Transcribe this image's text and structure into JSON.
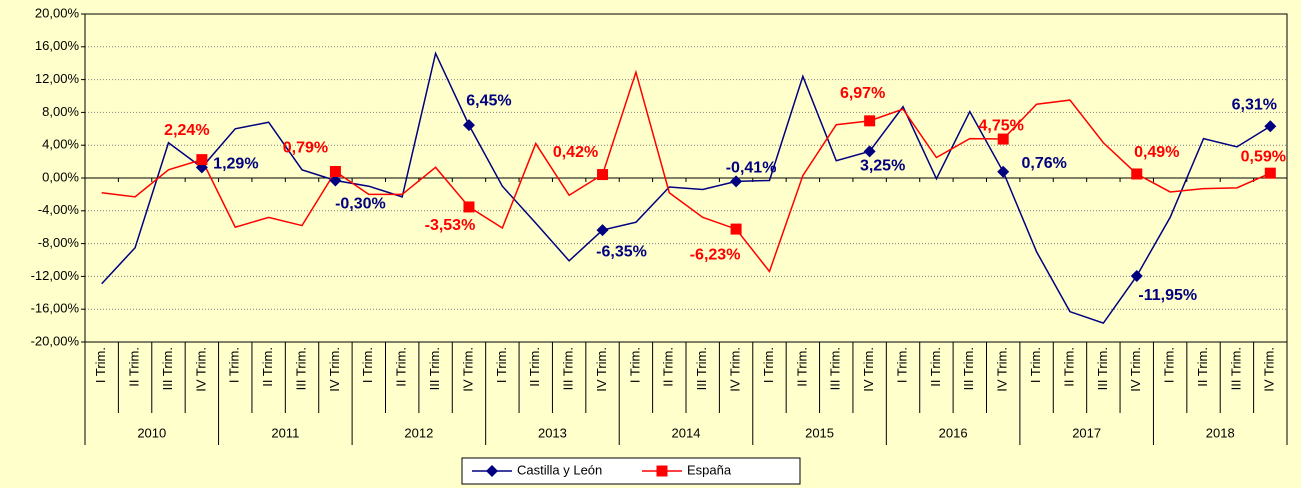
{
  "chart_data": {
    "type": "line",
    "categories": [
      "I Trim.",
      "II Trim.",
      "III Trim.",
      "IV Trim.",
      "I Trim.",
      "II Trim.",
      "III Trim.",
      "IV Trim.",
      "I Trim.",
      "II Trim.",
      "III Trim.",
      "IV Trim.",
      "I Trim.",
      "II Trim.",
      "III Trim.",
      "IV Trim.",
      "I Trim.",
      "II Trim.",
      "III Trim.",
      "IV Trim.",
      "I Trim.",
      "II Trim.",
      "III Trim.",
      "IV Trim.",
      "I Trim.",
      "II Trim.",
      "III Trim.",
      "IV Trim.",
      "I Trim.",
      "II Trim.",
      "III Trim.",
      "IV Trim.",
      "I Trim.",
      "II Trim.",
      "III Trim.",
      "IV Trim."
    ],
    "years": [
      "2010",
      "2011",
      "2012",
      "2013",
      "2014",
      "2015",
      "2016",
      "2017",
      "2018"
    ],
    "series": [
      {
        "name": "Castilla y León",
        "color": "#000080",
        "marker": "diamond",
        "values": [
          -12.9,
          -8.5,
          4.3,
          1.29,
          6.0,
          6.8,
          1.0,
          -0.3,
          -1.0,
          -2.3,
          15.2,
          6.45,
          -1.0,
          -5.5,
          -10.1,
          -6.35,
          -5.4,
          -1.1,
          -1.4,
          -0.41,
          -0.3,
          12.4,
          2.1,
          3.25,
          8.7,
          -0.1,
          8.1,
          0.76,
          -9.0,
          -16.3,
          -17.7,
          -11.95,
          -4.8,
          4.8,
          3.8,
          6.31
        ],
        "value_labels": [
          null,
          null,
          null,
          "1,29%",
          null,
          null,
          null,
          "-0,30%",
          null,
          null,
          null,
          "6,45%",
          null,
          null,
          null,
          "-6,35%",
          null,
          null,
          null,
          "-0,41%",
          null,
          null,
          null,
          "3,25%",
          null,
          null,
          null,
          "0,76%",
          null,
          null,
          null,
          "-11,95%",
          null,
          null,
          null,
          "6,31%"
        ]
      },
      {
        "name": "España",
        "color": "#ff0000",
        "marker": "square",
        "values": [
          -1.8,
          -2.3,
          1.0,
          2.24,
          -6.0,
          -4.8,
          -5.8,
          0.79,
          -2.0,
          -2.0,
          1.3,
          -3.53,
          -6.1,
          4.2,
          -2.1,
          0.42,
          12.9,
          -1.8,
          -4.8,
          -6.23,
          -11.4,
          0.3,
          6.5,
          6.97,
          8.4,
          2.5,
          4.8,
          4.75,
          9.0,
          9.5,
          4.3,
          0.49,
          -1.7,
          -1.3,
          -1.2,
          0.59
        ],
        "value_labels": [
          null,
          null,
          null,
          "2,24%",
          null,
          null,
          null,
          "0,79%",
          null,
          null,
          null,
          "-3,53%",
          null,
          null,
          null,
          "0,42%",
          null,
          null,
          null,
          "-6,23%",
          null,
          null,
          null,
          "6,97%",
          null,
          null,
          null,
          "4,75%",
          null,
          null,
          null,
          "0,49%",
          null,
          null,
          null,
          "0,59%"
        ]
      }
    ],
    "ylim": [
      -20,
      20
    ],
    "yticks": [
      {
        "value": -20,
        "label": "-20,00%"
      },
      {
        "value": -16,
        "label": "-16,00%"
      },
      {
        "value": -12,
        "label": "-12,00%"
      },
      {
        "value": -8,
        "label": "-8,00%"
      },
      {
        "value": -4,
        "label": "-4,00%"
      },
      {
        "value": 0,
        "label": "0,00%"
      },
      {
        "value": 4,
        "label": "4,00%"
      },
      {
        "value": 8,
        "label": "8,00%"
      },
      {
        "value": 12,
        "label": "12,00%"
      },
      {
        "value": 16,
        "label": "16,00%"
      },
      {
        "value": 20,
        "label": "20,00%"
      }
    ],
    "grid": true,
    "legend": "bottom"
  }
}
